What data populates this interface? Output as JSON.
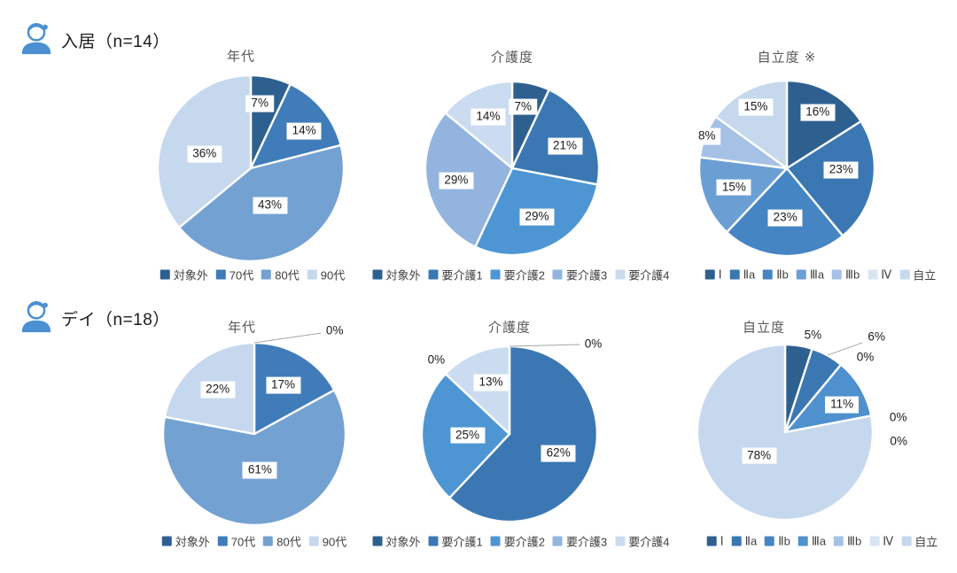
{
  "headers": [
    {
      "text": "入居（n=14）",
      "icon": "person-icon"
    },
    {
      "text": "デイ（n=18）",
      "icon": "person-icon"
    }
  ],
  "icon_color": "#4A90D2",
  "label_leader_color": "#a6a6a6",
  "chart_data": [
    {
      "type": "pie",
      "group": "入居（n=14）",
      "title": "年代",
      "categories": [
        "対象外",
        "70代",
        "80代",
        "90代"
      ],
      "values": [
        7,
        14,
        43,
        36
      ],
      "percent_labels": [
        "7%",
        "14%",
        "43%",
        "36%"
      ],
      "colors": [
        "#2E608F",
        "#3F7CB9",
        "#73A1D2",
        "#C6D8EE"
      ],
      "legend_position": "bottom"
    },
    {
      "type": "pie",
      "group": "入居（n=14）",
      "title": "介護度",
      "categories": [
        "対象外",
        "要介護1",
        "要介護2",
        "要介護3",
        "要介護4"
      ],
      "values": [
        7,
        21,
        29,
        29,
        14
      ],
      "percent_labels": [
        "7%",
        "21%",
        "29%",
        "29%",
        "14%"
      ],
      "colors": [
        "#2E608F",
        "#3B78B3",
        "#4E96D3",
        "#92B4DE",
        "#CBDCF1"
      ],
      "legend_position": "bottom"
    },
    {
      "type": "pie",
      "group": "入居（n=14）",
      "title": "自立度 ※",
      "categories": [
        "Ⅰ",
        "Ⅱa",
        "Ⅱb",
        "Ⅲa",
        "Ⅲb",
        "Ⅳ",
        "自立"
      ],
      "values": [
        16,
        23,
        23,
        15,
        8,
        0,
        15
      ],
      "percent_labels": [
        "16%",
        "23%",
        "23%",
        "15%",
        "8%",
        "",
        "15%"
      ],
      "colors": [
        "#2E608F",
        "#3B77B2",
        "#4585C4",
        "#6B9FD4",
        "#A5C1E5",
        "#DAE5F3",
        "#C6D8EE"
      ],
      "legend_position": "bottom"
    },
    {
      "type": "pie",
      "group": "デイ（n=18）",
      "title": "年代",
      "categories": [
        "対象外",
        "70代",
        "80代",
        "90代"
      ],
      "values": [
        0,
        17,
        61,
        22
      ],
      "percent_labels": [
        "0%",
        "17%",
        "61%",
        "22%"
      ],
      "colors": [
        "#2E608F",
        "#3F7CB9",
        "#73A1D2",
        "#C6D8EE"
      ],
      "legend_position": "bottom"
    },
    {
      "type": "pie",
      "group": "デイ（n=18）",
      "title": "介護度",
      "categories": [
        "対象外",
        "要介護1",
        "要介護2",
        "要介護3",
        "要介護4"
      ],
      "values": [
        0,
        62,
        25,
        0,
        13
      ],
      "percent_labels": [
        "0%",
        "62%",
        "25%",
        "0%",
        "13%"
      ],
      "colors": [
        "#2E608F",
        "#3B78B3",
        "#4E96D3",
        "#92B4DE",
        "#CBDCF1"
      ],
      "legend_position": "bottom"
    },
    {
      "type": "pie",
      "group": "デイ（n=18）",
      "title": "自立度",
      "categories": [
        "Ⅰ",
        "Ⅱa",
        "Ⅱb",
        "Ⅲa",
        "Ⅲb",
        "Ⅳ",
        "自立"
      ],
      "values": [
        5,
        6,
        0,
        11,
        0,
        0,
        78
      ],
      "percent_labels": [
        "5%",
        "6%",
        "0%",
        "11%",
        "0%",
        "0%",
        "78%"
      ],
      "colors": [
        "#2E608F",
        "#3B77B2",
        "#4585C4",
        "#4F90CF",
        "#A5C1E5",
        "#DAE5F3",
        "#C6D8EE"
      ],
      "legend_position": "bottom"
    }
  ]
}
